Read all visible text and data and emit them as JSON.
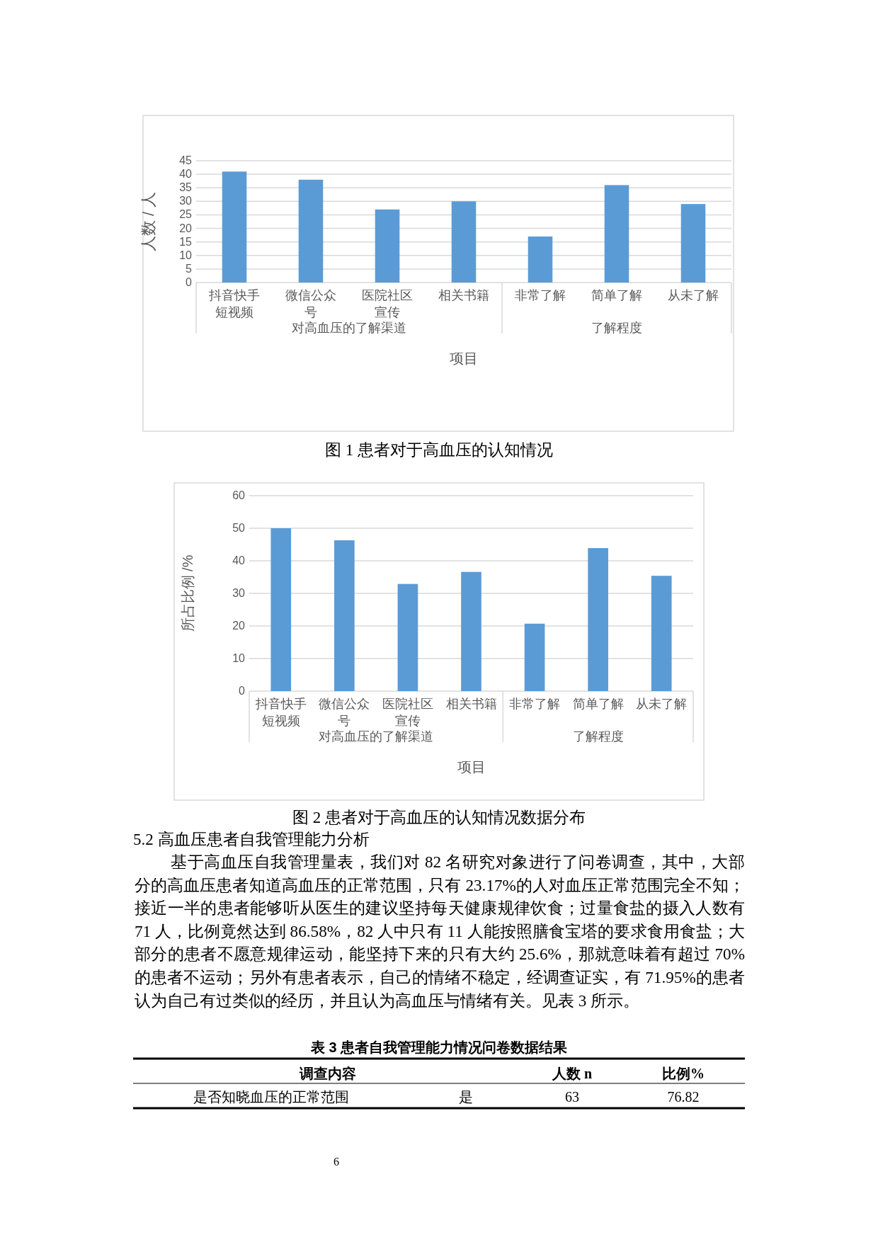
{
  "chart_data": [
    {
      "type": "bar",
      "xlabel": "项目",
      "ylabel": "人数 / 人",
      "categories": [
        "抖音快手短视频",
        "微信公众号",
        "医院社区宣传",
        "相关书籍",
        "非常了解",
        "简单了解",
        "从未了解"
      ],
      "series": [
        {
          "color": "#5b9bd5",
          "values": [
            41,
            38,
            27,
            30,
            17,
            36,
            29
          ]
        }
      ],
      "ylim": [
        0,
        45
      ],
      "yticks": [
        0,
        5,
        10,
        15,
        20,
        25,
        30,
        35,
        40,
        45
      ],
      "grid": "y",
      "annotations": [
        "对高血压的了解渠道",
        "了解程度",
        "图 1 患者对于高血压的认知情况"
      ]
    },
    {
      "type": "bar",
      "xlabel": "项目",
      "ylabel": "所占比例 /%",
      "categories": [
        "抖音快手短视频",
        "微信公众号",
        "医院社区宣传",
        "相关书籍",
        "非常了解",
        "简单了解",
        "从未了解"
      ],
      "series": [
        {
          "color": "#5b9bd5",
          "values": [
            50,
            46.3,
            32.9,
            36.6,
            20.7,
            43.9,
            35.4
          ]
        }
      ],
      "ylim": [
        0,
        60
      ],
      "yticks": [
        0,
        10,
        20,
        30,
        40,
        50,
        60
      ],
      "grid": "y",
      "annotations": [
        "对高血压的了解渠道",
        "了解程度",
        "图 2 患者对于高血压的认知情况数据分布",
        "5.2 高血压患者自我管理能力分析",
        "基于高血压自我管理量表，我们对 82 名研究对象进行了问卷调查，其中，大部分的高血压患者知道高血压的正常范围，只有 23.17%的人对血压正常范围完全不知；接近一半的患者能够听从医生的建议坚持每天健康规律饮食；过量食盐的摄入人数有 71 人，比例竟然达到 86.58%，82 人中只有 11 人能按照膳食宝塔的要求食用食盐；大部分的患者不愿意规律运动，能坚持下来的只有大约 25.6%，那就意味着有超过 70%的患者不运动；另外有患者表示，自己的情绪不稳定，经调查证实，有 71.95%的患者认为自己有过类似的经历，并且认为高血压与情绪有关。见表 3 所示。",
        "表 3 患者自我管理能力情况问卷数据结果",
        "调查内容",
        "人数 n",
        "比例%",
        "是否知晓血压的正常范围",
        "是",
        "63",
        "76.82",
        "6"
      ]
    }
  ]
}
